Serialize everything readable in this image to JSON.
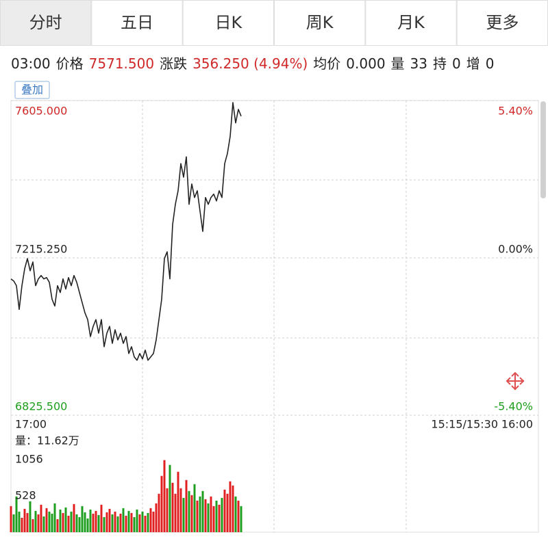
{
  "tabs": [
    "分时",
    "五日",
    "日K",
    "周K",
    "月K",
    "更多"
  ],
  "selected_tab": 0,
  "info": {
    "time": "03:00",
    "price_label": "价格",
    "price": "7571.500",
    "change_label": "涨跌",
    "change": "356.250 (4.94%)",
    "avg_label": "均价",
    "avg": "0.000",
    "vol_label": "量",
    "vol": "33",
    "oi_label": "持",
    "oi": "0",
    "inc_label": "增",
    "inc": "0"
  },
  "overlay_button": "叠加",
  "chart_data": [
    {
      "type": "line",
      "color": "#222222",
      "ylim": [
        6825.5,
        7605
      ],
      "yticks": [
        {
          "value": 6825.5,
          "label": "6825.500"
        },
        {
          "value": 7215.25,
          "label": "7215.250"
        },
        {
          "value": 7605,
          "label": "7605.000"
        }
      ],
      "y2lim": [
        -5.4,
        5.4
      ],
      "y2ticks": [
        {
          "value": -5.4,
          "label": "-5.40%"
        },
        {
          "value": 0,
          "label": "0.00%"
        },
        {
          "value": 5.4,
          "label": "5.40%"
        }
      ],
      "values": [
        7163.2,
        7158.1,
        7146.4,
        7087.6,
        7146.4,
        7188.4,
        7213.6,
        7183.3,
        7205.2,
        7146.4,
        7163.2,
        7171.6,
        7163.2,
        7166.5,
        7154.8,
        7112.8,
        7096.0,
        7146.4,
        7129.6,
        7163.2,
        7138.0,
        7166.5,
        7146.4,
        7171.6,
        7154.8,
        7129.6,
        7104.4,
        7079.2,
        7062.4,
        7020.4,
        7045.6,
        7062.4,
        7028.8,
        7062.4,
        6995.2,
        7028.8,
        7045.6,
        7003.6,
        7037.2,
        7012.0,
        7028.8,
        7003.6,
        7020.4,
        6978.4,
        6995.2,
        6970.0,
        6961.6,
        6978.4,
        6965.0,
        6986.8,
        6961.6,
        6970.0,
        6978.4,
        7012.0,
        7062.4,
        7112.8,
        7213.6,
        7230.4,
        7163.2,
        7297.6,
        7348.0,
        7381.6,
        7448.8,
        7415.2,
        7465.6,
        7348.0,
        7398.4,
        7364.8,
        7381.6,
        7331.2,
        7280.8,
        7364.8,
        7348.0,
        7364.8,
        7373.2,
        7356.4,
        7381.6,
        7364.8,
        7448.8,
        7474.0,
        7516.0,
        7600.0,
        7549.6,
        7583.2,
        7566.4
      ]
    },
    {
      "type": "bar",
      "title": "量：11.62万",
      "up_color": "#e02020",
      "down_color": "#1e9e1e",
      "xlabels": [
        "17:00",
        "15:15/15:30",
        "16:00"
      ],
      "ylim": [
        0,
        1056
      ],
      "yticks": [
        528,
        1056
      ],
      "values": [
        380,
        260,
        520,
        300,
        210,
        340,
        280,
        450,
        190,
        310,
        260,
        400,
        230,
        350,
        300,
        270,
        420,
        190,
        330,
        280,
        360,
        240,
        300,
        410,
        260,
        220,
        380,
        290,
        200,
        330,
        270,
        310,
        250,
        400,
        220,
        290,
        340,
        260,
        300,
        230,
        270,
        350,
        240,
        310,
        280,
        220,
        330,
        260,
        300,
        240,
        280,
        350,
        300,
        420,
        560,
        820,
        1050,
        640,
        980,
        720,
        560,
        880,
        640,
        500,
        760,
        600,
        540,
        700,
        460,
        520,
        600,
        480,
        420,
        520,
        380,
        460,
        400,
        500,
        620,
        560,
        740,
        680,
        520,
        460,
        380
      ]
    }
  ]
}
